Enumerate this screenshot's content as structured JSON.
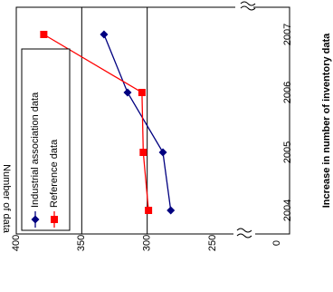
{
  "chart_data": {
    "type": "line",
    "orientation": "rotated-90-ccw",
    "title": "Increase in number of inventory data",
    "xlabel": "",
    "ylabel": "Number of data",
    "categories": [
      "2004",
      "2005",
      "2006",
      "2007"
    ],
    "y_ticks": [
      "0",
      "250",
      "300",
      "350",
      "400"
    ],
    "ylim": [
      250,
      400
    ],
    "axis_break": true,
    "grid": true,
    "legend_position": "top-left",
    "series": [
      {
        "name": "Industrial association data",
        "color": "#000080",
        "marker": "diamond",
        "values": [
          282,
          288,
          315,
          333
        ]
      },
      {
        "name": "Reference data",
        "color": "#ff0000",
        "marker": "square",
        "values": [
          299,
          303,
          304,
          379
        ]
      }
    ]
  }
}
